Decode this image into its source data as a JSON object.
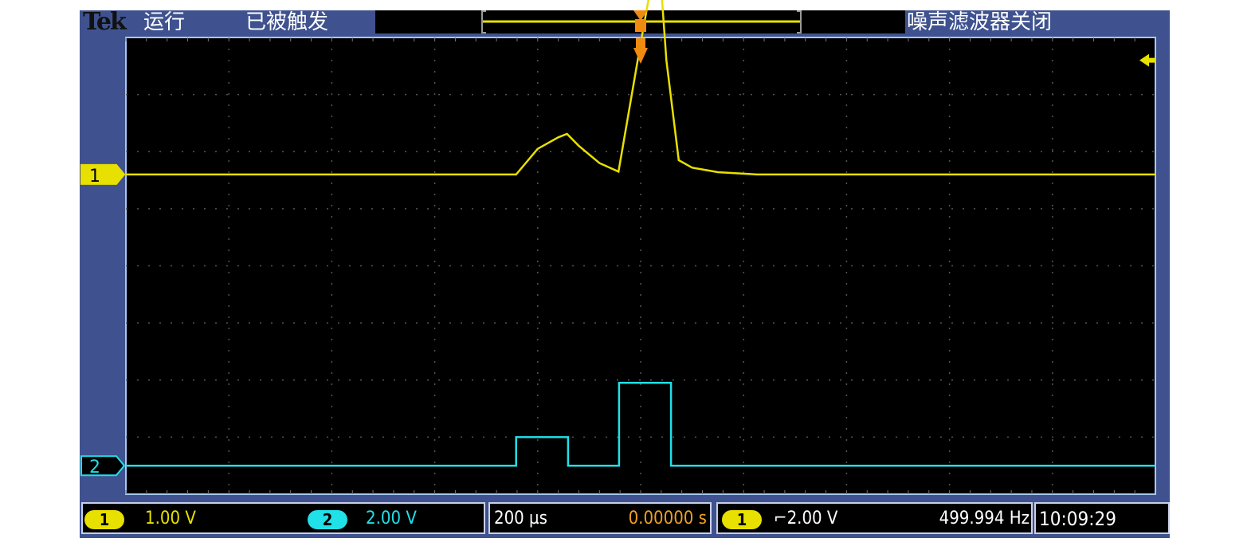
{
  "header": {
    "brand": "Tek",
    "run_state": "运行",
    "trigger_state": "已被触发",
    "noise_filter": "噪声滤波器关闭"
  },
  "footer": {
    "ch1": {
      "label": "1",
      "scale": "1.00 V"
    },
    "ch2": {
      "label": "2",
      "scale": "2.00 V"
    },
    "timebase": "200 µs",
    "position": "0.00000 s",
    "trigger": {
      "source": "1",
      "slope_level": "⌐2.00 V",
      "frequency": "499.994 Hz"
    },
    "clock": "10:09:29"
  },
  "colors": {
    "ch1": "#e8e000",
    "ch2": "#20e0e8",
    "frame": "#3f528f",
    "trigger_marker": "#f08a10",
    "position": "#f0a020"
  },
  "chart_data": {
    "type": "line",
    "x_unit": "µs",
    "xlim": [
      -1000,
      1000
    ],
    "x_per_div": 200,
    "grid": true,
    "series": [
      {
        "name": "1",
        "volts_per_div": 1.0,
        "ylim": [
          -5.6,
          2.4
        ],
        "x": [
          -1000,
          -242,
          -200,
          -160,
          -143,
          -120,
          -80,
          -43,
          0,
          34,
          50,
          74,
          100,
          150,
          226,
          1000
        ],
        "y": [
          0,
          0,
          0.45,
          0.65,
          0.71,
          0.5,
          0.2,
          0.05,
          2.3,
          4.0,
          2.0,
          0.25,
          0.12,
          0.04,
          0.0,
          0
        ]
      },
      {
        "name": "2",
        "volts_per_div": 2.0,
        "ylim": [
          -1.0,
          15.0
        ],
        "x": [
          -1000,
          -242,
          -242,
          -141,
          -141,
          -42,
          -42,
          59,
          59,
          1000
        ],
        "y": [
          0,
          0,
          1.0,
          1.0,
          0,
          0,
          2.9,
          2.9,
          0,
          0
        ]
      }
    ],
    "trigger_level_v": 2.0
  }
}
